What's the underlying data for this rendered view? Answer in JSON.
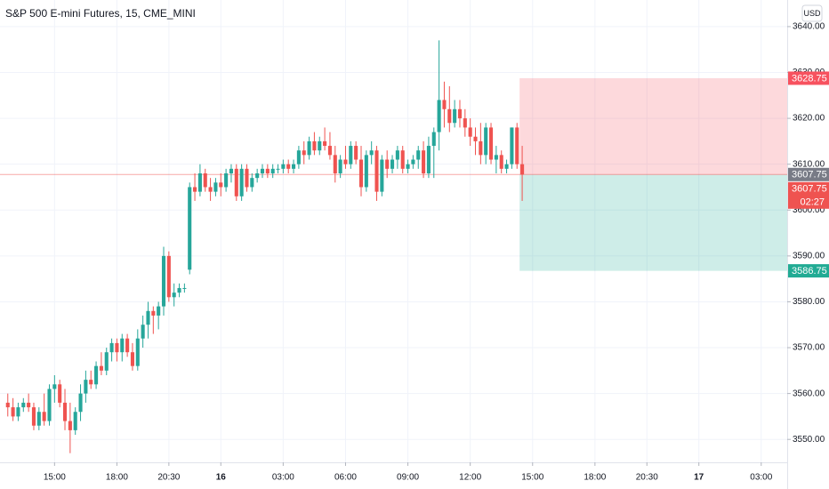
{
  "chart_data": {
    "type": "candlestick",
    "title": "S&P 500 E-mini Futures, 15, CME_MINI",
    "currency": "USD",
    "up_color": "#26a69a",
    "down_color": "#ef5350",
    "open": [
      3558,
      3557,
      3555,
      3557,
      3558,
      3557,
      3553,
      3556,
      3554,
      3561,
      3562,
      3558,
      3554,
      3552,
      3556,
      3560,
      3563,
      3562,
      3566,
      3565,
      3569,
      3571,
      3569,
      3572,
      3569,
      3566,
      3572,
      3575,
      3578,
      3577,
      3579,
      3590,
      3581,
      3582,
      3583,
      3587,
      3605,
      3604,
      3608,
      3605,
      3604,
      3606,
      3605,
      3608,
      3609,
      3603,
      3609,
      3605,
      3607,
      3608,
      3609,
      3608,
      3609,
      3609,
      3610,
      3609,
      3610,
      3613,
      3612,
      3615,
      3613,
      3615,
      3614,
      3612,
      3608,
      3611,
      3610,
      3614,
      3611,
      3605,
      3612,
      3613,
      3604,
      3611,
      3609,
      3611,
      3613,
      3609,
      3610,
      3611,
      3613,
      3608,
      3614,
      3617,
      3624,
      3622,
      3619,
      3622,
      3620,
      3618,
      3616,
      3615,
      3612,
      3618,
      3611,
      3612,
      3609,
      3610,
      3618,
      3610
    ],
    "high": [
      3560,
      3559,
      3558,
      3559,
      3560,
      3558,
      3557,
      3560,
      3562,
      3564,
      3563,
      3561,
      3558,
      3557,
      3562,
      3565,
      3565,
      3567,
      3569,
      3570,
      3572,
      3572,
      3573,
      3573,
      3571,
      3574,
      3577,
      3580,
      3579,
      3580,
      3592,
      3591,
      3584,
      3584,
      3584,
      3606,
      3608,
      3610,
      3609,
      3607,
      3607,
      3608,
      3609,
      3610,
      3610,
      3610,
      3610,
      3608,
      3609,
      3610,
      3610,
      3610,
      3610,
      3611,
      3611,
      3611,
      3614,
      3615,
      3616,
      3617,
      3616,
      3618,
      3617,
      3614,
      3612,
      3614,
      3615,
      3615,
      3614,
      3613,
      3615,
      3614,
      3612,
      3613,
      3612,
      3614,
      3614,
      3611,
      3612,
      3614,
      3615,
      3616,
      3618,
      3637,
      3628,
      3627,
      3624,
      3624,
      3622,
      3620,
      3618,
      3619,
      3619,
      3619,
      3614,
      3613,
      3611,
      3618,
      3619,
      3614
    ],
    "low": [
      3555,
      3554,
      3554,
      3556,
      3556,
      3552,
      3552,
      3553,
      3553,
      3558,
      3557,
      3552,
      3547,
      3551,
      3554,
      3558,
      3561,
      3561,
      3564,
      3564,
      3567,
      3567,
      3567,
      3568,
      3565,
      3565,
      3570,
      3572,
      3573,
      3574,
      3577,
      3580,
      3579,
      3581,
      3582,
      3586,
      3602,
      3603,
      3604,
      3602,
      3603,
      3603,
      3604,
      3606,
      3602,
      3602,
      3604,
      3604,
      3606,
      3607,
      3607,
      3607,
      3608,
      3608,
      3608,
      3608,
      3609,
      3610,
      3611,
      3612,
      3612,
      3613,
      3611,
      3606,
      3607,
      3609,
      3609,
      3610,
      3603,
      3604,
      3610,
      3602,
      3603,
      3607,
      3608,
      3609,
      3608,
      3608,
      3609,
      3609,
      3607,
      3607,
      3607,
      3613,
      3618,
      3617,
      3618,
      3618,
      3616,
      3614,
      3612,
      3610,
      3610,
      3610,
      3608,
      3608,
      3608,
      3609,
      3609,
      3602
    ],
    "close": [
      3557,
      3555,
      3557,
      3558,
      3557,
      3553,
      3556,
      3554,
      3561,
      3562,
      3558,
      3554,
      3552,
      3556,
      3560,
      3563,
      3562,
      3566,
      3565,
      3569,
      3571,
      3569,
      3572,
      3569,
      3566,
      3572,
      3575,
      3578,
      3577,
      3579,
      3590,
      3581,
      3582,
      3583,
      3583,
      3605,
      3604,
      3608,
      3605,
      3604,
      3606,
      3605,
      3608,
      3609,
      3603,
      3609,
      3605,
      3607,
      3608,
      3609,
      3608,
      3609,
      3609,
      3610,
      3609,
      3610,
      3613,
      3612,
      3615,
      3613,
      3615,
      3614,
      3612,
      3608,
      3611,
      3610,
      3614,
      3611,
      3605,
      3612,
      3613,
      3604,
      3611,
      3609,
      3611,
      3613,
      3609,
      3610,
      3611,
      3613,
      3608,
      3614,
      3617,
      3624,
      3622,
      3619,
      3622,
      3620,
      3618,
      3616,
      3615,
      3612,
      3618,
      3611,
      3612,
      3609,
      3610,
      3618,
      3610,
      3607.75
    ],
    "xlim": [
      -1.5,
      150
    ],
    "xticks": [
      {
        "value": 9,
        "label": "15:00"
      },
      {
        "value": 21,
        "label": "18:00"
      },
      {
        "value": 31,
        "label": "20:30"
      },
      {
        "value": 41,
        "label": "16"
      },
      {
        "value": 53,
        "label": "03:00"
      },
      {
        "value": 65,
        "label": "06:00"
      },
      {
        "value": 77,
        "label": "09:00"
      },
      {
        "value": 89,
        "label": "12:00"
      },
      {
        "value": 101,
        "label": "15:00"
      },
      {
        "value": 113,
        "label": "18:00"
      },
      {
        "value": 123,
        "label": "20:30"
      },
      {
        "value": 133,
        "label": "17"
      },
      {
        "value": 145,
        "label": "03:00"
      }
    ],
    "ylim": [
      3545,
      3645.8
    ],
    "yticks": [
      {
        "value": 3640,
        "label": "3640.00"
      },
      {
        "value": 3630,
        "label": "3630.00"
      },
      {
        "value": 3620,
        "label": "3620.00"
      },
      {
        "value": 3610,
        "label": "3610.00"
      },
      {
        "value": 3600,
        "label": "3600.00"
      },
      {
        "value": 3590,
        "label": "3590.00"
      },
      {
        "value": 3580,
        "label": "3580.00"
      },
      {
        "value": 3570,
        "label": "3570.00"
      },
      {
        "value": 3560,
        "label": "3560.00"
      },
      {
        "value": 3550,
        "label": "3550.00"
      }
    ],
    "grid": true,
    "position": {
      "start": 99,
      "end": 150,
      "entry": 3607.75,
      "stop": 3628.75,
      "target": 3586.75,
      "stop_color": "#f7525f",
      "target_color": "#22ab94",
      "entry_color": "#787b86"
    },
    "last_price": 3607.75,
    "countdown": "02:27"
  }
}
